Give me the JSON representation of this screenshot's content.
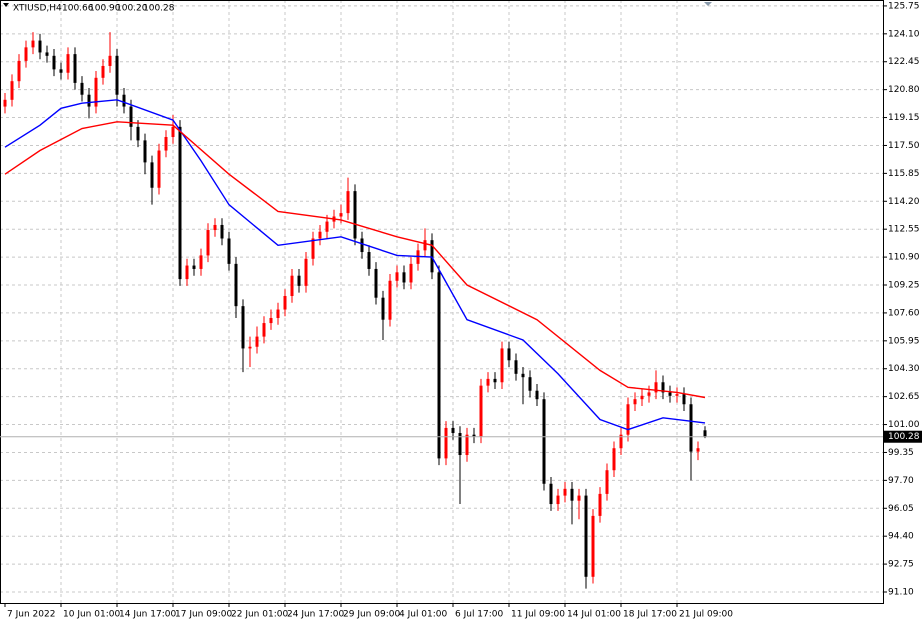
{
  "chart_data": {
    "type": "candlestick",
    "title": "XTIUSD,H4",
    "ohlc_labels": [
      "100.66",
      "100.90",
      "100.20",
      "100.28"
    ],
    "categories": [
      "7 Jun 2022",
      null,
      null,
      null,
      null,
      null,
      null,
      null,
      "10 Jun 01:00",
      null,
      null,
      null,
      null,
      null,
      null,
      null,
      "14 Jun 17:00",
      null,
      null,
      null,
      null,
      null,
      null,
      null,
      "17 Jun 09:00",
      null,
      null,
      null,
      null,
      null,
      null,
      null,
      "22 Jun 01:00",
      null,
      null,
      null,
      null,
      null,
      null,
      null,
      "24 Jun 17:00",
      null,
      null,
      null,
      null,
      null,
      null,
      null,
      "29 Jun 09:00",
      null,
      null,
      null,
      null,
      null,
      null,
      null,
      "4 Jul 01:00",
      null,
      null,
      null,
      null,
      null,
      null,
      null,
      "6 Jul 17:00",
      null,
      null,
      null,
      null,
      null,
      null,
      null,
      "11 Jul 09:00",
      null,
      null,
      null,
      null,
      null,
      null,
      null,
      "14 Jul 01:00",
      null,
      null,
      null,
      null,
      null,
      null,
      null,
      "18 Jul 17:00",
      null,
      null,
      null,
      null,
      null,
      null,
      null,
      "21 Jul 09:00",
      null,
      null,
      null,
      null
    ],
    "open": [
      119.8,
      120.2,
      121.3,
      122.5,
      123.3,
      123.7,
      123.0,
      122.8,
      122.0,
      121.8,
      122.9,
      121.2,
      120.5,
      119.8,
      121.5,
      122.2,
      122.8,
      120.5,
      119.8,
      118.6,
      117.8,
      116.5,
      115.0,
      117.2,
      118.0,
      118.6,
      109.6,
      110.4,
      110.2,
      111.0,
      112.5,
      112.8,
      112.0,
      110.5,
      108.0,
      105.5,
      105.6,
      106.2,
      107.0,
      107.3,
      107.8,
      108.6,
      109.8,
      109.2,
      110.8,
      112.0,
      112.4,
      113.0,
      113.3,
      113.5,
      114.8,
      112.0,
      111.2,
      110.2,
      108.5,
      107.2,
      109.5,
      110.0,
      109.4,
      110.5,
      111.3,
      111.9,
      110.0,
      99.0,
      100.8,
      100.5,
      99.2,
      100.4,
      100.3,
      103.3,
      103.7,
      103.5,
      105.5,
      104.8,
      104.0,
      103.8,
      103.0,
      102.5,
      97.5,
      96.3,
      96.8,
      97.2,
      96.5,
      96.8,
      92.0,
      95.6,
      96.9,
      98.3,
      99.6,
      100.4,
      102.2,
      102.5,
      102.7,
      102.9,
      103.5,
      102.9,
      102.7,
      102.8,
      102.2,
      99.4,
      100.66
    ],
    "high": [
      120.6,
      121.7,
      122.9,
      123.7,
      124.2,
      124.1,
      123.4,
      123.2,
      122.4,
      123.3,
      123.3,
      121.6,
      120.9,
      121.9,
      122.6,
      124.2,
      123.2,
      120.9,
      120.2,
      119.0,
      118.2,
      116.9,
      117.6,
      118.4,
      119.3,
      119.0,
      110.8,
      110.8,
      111.4,
      112.9,
      113.2,
      113.2,
      112.4,
      110.9,
      108.4,
      106.2,
      106.8,
      107.4,
      107.8,
      108.2,
      109.0,
      110.2,
      110.2,
      111.2,
      112.4,
      112.8,
      113.4,
      113.7,
      114.0,
      115.6,
      115.2,
      112.4,
      111.6,
      110.6,
      108.9,
      109.9,
      110.4,
      110.4,
      110.9,
      111.7,
      112.6,
      112.3,
      110.4,
      101.2,
      101.2,
      100.9,
      100.8,
      100.8,
      103.7,
      104.1,
      104.1,
      105.9,
      105.9,
      105.2,
      104.4,
      104.2,
      103.4,
      102.9,
      97.9,
      97.2,
      97.6,
      97.6,
      97.2,
      97.2,
      96.0,
      97.3,
      98.7,
      100.0,
      100.8,
      102.6,
      102.9,
      103.1,
      103.3,
      104.2,
      103.9,
      103.3,
      103.2,
      103.2,
      102.6,
      100.0,
      100.9
    ],
    "low": [
      119.4,
      119.8,
      120.9,
      122.1,
      122.9,
      122.6,
      122.4,
      121.6,
      121.4,
      121.4,
      120.8,
      120.1,
      119.1,
      119.4,
      121.1,
      121.8,
      119.8,
      119.4,
      117.8,
      117.4,
      115.8,
      114.0,
      114.6,
      116.8,
      117.6,
      109.2,
      109.2,
      109.8,
      109.8,
      110.6,
      112.1,
      111.6,
      110.1,
      107.3,
      104.1,
      104.4,
      105.2,
      105.8,
      106.6,
      106.9,
      107.4,
      108.2,
      108.8,
      108.8,
      110.4,
      111.6,
      112.0,
      112.6,
      112.9,
      113.1,
      111.6,
      110.8,
      109.8,
      108.1,
      106.0,
      106.8,
      109.1,
      109.0,
      109.0,
      110.1,
      110.9,
      109.6,
      98.6,
      98.6,
      100.1,
      96.3,
      98.8,
      99.9,
      99.9,
      102.9,
      103.1,
      103.1,
      104.4,
      103.6,
      102.2,
      102.6,
      102.1,
      97.1,
      95.9,
      95.9,
      96.4,
      95.1,
      95.4,
      91.3,
      91.6,
      95.2,
      96.5,
      97.9,
      99.2,
      100.0,
      101.8,
      102.1,
      102.3,
      102.5,
      102.5,
      102.3,
      102.3,
      101.8,
      97.7,
      98.9,
      100.2
    ],
    "close": [
      120.2,
      121.3,
      122.5,
      123.3,
      123.7,
      123.0,
      122.8,
      122.0,
      121.8,
      122.9,
      121.2,
      120.5,
      119.8,
      121.5,
      122.2,
      122.8,
      120.5,
      119.8,
      118.6,
      117.8,
      116.5,
      115.0,
      117.2,
      118.0,
      118.6,
      109.6,
      110.4,
      110.2,
      111.0,
      112.5,
      112.8,
      112.0,
      110.5,
      108.0,
      105.5,
      105.6,
      106.2,
      107.0,
      107.3,
      107.8,
      108.6,
      109.8,
      109.2,
      110.8,
      112.0,
      112.4,
      113.0,
      113.3,
      113.5,
      114.8,
      112.0,
      111.2,
      110.2,
      108.5,
      107.2,
      109.5,
      110.0,
      109.4,
      110.5,
      111.3,
      111.9,
      110.0,
      99.0,
      100.8,
      100.5,
      99.2,
      100.4,
      100.3,
      103.3,
      103.7,
      103.5,
      105.5,
      104.8,
      104.0,
      103.8,
      103.0,
      102.5,
      97.5,
      96.3,
      96.8,
      97.2,
      96.5,
      96.8,
      92.0,
      95.6,
      96.9,
      98.3,
      99.6,
      100.4,
      102.2,
      102.5,
      102.7,
      102.9,
      103.5,
      102.9,
      102.7,
      102.8,
      102.2,
      99.4,
      99.6,
      100.28
    ],
    "up_color": "#ff0000",
    "down_color": "#000000",
    "lines": [
      {
        "color": "#0000ff",
        "x": [
          0,
          5,
          8,
          11,
          16,
          24,
          28,
          32,
          39,
          48,
          56,
          61,
          66,
          74,
          79,
          85,
          89,
          94,
          100
        ],
        "values": [
          117.4,
          118.7,
          119.7,
          120.0,
          120.2,
          119.0,
          116.6,
          114.0,
          111.6,
          112.1,
          111.0,
          110.9,
          107.2,
          106.0,
          104.0,
          101.3,
          100.7,
          101.4,
          101.1
        ]
      },
      {
        "color": "#ff0000",
        "x": [
          0,
          5,
          11,
          16,
          24,
          32,
          39,
          48,
          56,
          61,
          66,
          76,
          85,
          89,
          96,
          100
        ],
        "values": [
          115.8,
          117.2,
          118.5,
          118.9,
          118.7,
          115.8,
          113.6,
          113.1,
          112.1,
          111.6,
          109.25,
          107.2,
          104.2,
          103.2,
          102.9,
          102.6
        ]
      }
    ],
    "current_price": {
      "value": 100.28,
      "label": "100.28"
    },
    "ylim": [
      90.45,
      126.1
    ],
    "yticks": [
      {
        "value": 125.75,
        "label": "125.75"
      },
      {
        "value": 124.1,
        "label": "124.10"
      },
      {
        "value": 122.45,
        "label": "122.45"
      },
      {
        "value": 120.8,
        "label": "120.80"
      },
      {
        "value": 119.15,
        "label": "119.15"
      },
      {
        "value": 117.5,
        "label": "117.50"
      },
      {
        "value": 115.85,
        "label": "115.85"
      },
      {
        "value": 114.2,
        "label": "114.20"
      },
      {
        "value": 112.55,
        "label": "112.55"
      },
      {
        "value": 110.9,
        "label": "110.90"
      },
      {
        "value": 109.25,
        "label": "109.25"
      },
      {
        "value": 107.6,
        "label": "107.60"
      },
      {
        "value": 105.95,
        "label": "105.95"
      },
      {
        "value": 104.3,
        "label": "104.30"
      },
      {
        "value": 102.65,
        "label": "102.65"
      },
      {
        "value": 101.0,
        "label": "101.00"
      },
      {
        "value": 99.35,
        "label": "99.35"
      },
      {
        "value": 97.7,
        "label": "97.70"
      },
      {
        "value": 96.05,
        "label": "96.05"
      },
      {
        "value": 94.4,
        "label": "94.40"
      },
      {
        "value": 92.75,
        "label": "92.75"
      },
      {
        "value": 91.1,
        "label": "91.10"
      }
    ],
    "grid": true
  }
}
